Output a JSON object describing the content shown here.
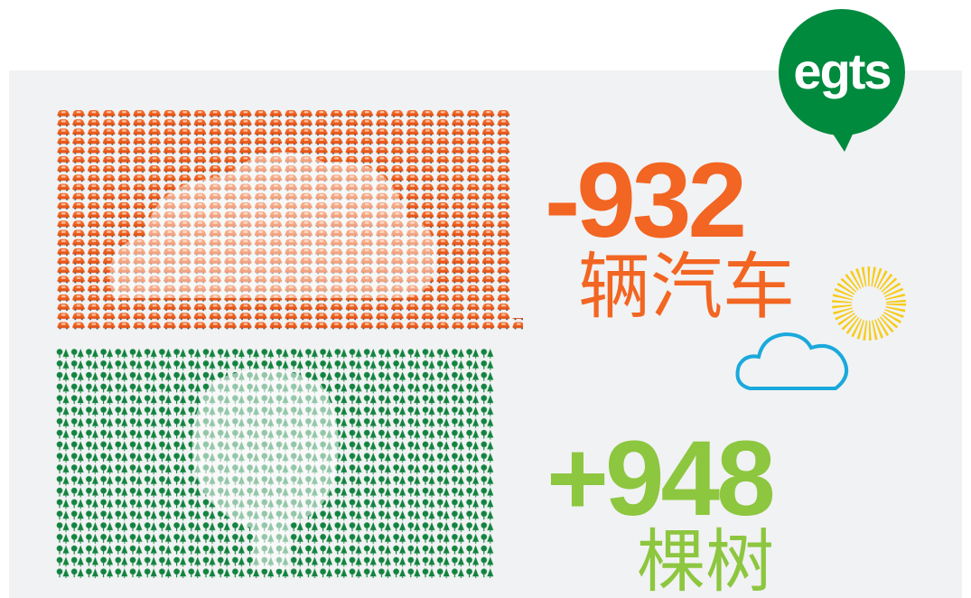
{
  "logo": "egts",
  "cars": {
    "value": "-932",
    "label": "辆汽车"
  },
  "trees": {
    "value": "+948",
    "label": "棵树"
  }
}
